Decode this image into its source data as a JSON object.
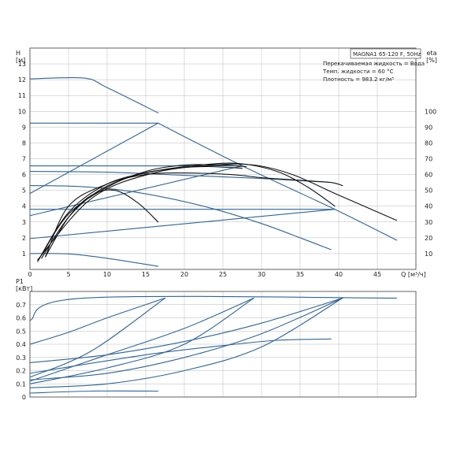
{
  "legend_box": {
    "model": "MAGNA1 65-120 F, 50Hz",
    "liquid": "Перекачиваемая жидкость = Вода",
    "temp": "Темп. жидкости = 60 °C",
    "density": "Плотность = 983.2 кг/м³"
  },
  "colors": {
    "blue": "#2f6496",
    "black": "#111111",
    "grid": "#b8b8b8"
  },
  "chart_data": [
    {
      "type": "line",
      "xlabel": "Q [м³/ч]",
      "ylabel": "H\n[м]",
      "y2label": "eta\n[%]",
      "xlim": [
        0,
        50
      ],
      "ylim": [
        0,
        14
      ],
      "y2lim": [
        0,
        140
      ],
      "x_ticks": [
        "0",
        "5",
        "10",
        "15",
        "20",
        "25",
        "30",
        "35",
        "40",
        "45"
      ],
      "y_ticks": [
        "1",
        "2",
        "3",
        "4",
        "5",
        "6",
        "7",
        "8",
        "9",
        "10",
        "11",
        "12",
        "13"
      ],
      "y2_ticks": [
        "10",
        "20",
        "30",
        "40",
        "50",
        "60",
        "70",
        "80",
        "90",
        "100"
      ],
      "grid": true,
      "series": [
        {
          "kind": "hq",
          "x": [
            0,
            7,
            10,
            16.6
          ],
          "y": [
            12.05,
            12.1,
            11.5,
            9.9
          ]
        },
        {
          "kind": "hq",
          "x": [
            16.6,
            27.5,
            39.5,
            47.5
          ],
          "y": [
            9.25,
            6.55,
            3.8,
            1.85
          ]
        },
        {
          "kind": "hq",
          "x": [
            0,
            16.6
          ],
          "y": [
            9.25,
            9.25
          ]
        },
        {
          "kind": "hq",
          "x": [
            0,
            27.5
          ],
          "y": [
            6.55,
            6.55
          ]
        },
        {
          "kind": "hq",
          "x": [
            0,
            39.5
          ],
          "y": [
            3.8,
            3.8
          ]
        },
        {
          "kind": "hq",
          "x": [
            0,
            16.6
          ],
          "y": [
            4.8,
            9.25
          ]
        },
        {
          "kind": "hq",
          "x": [
            0,
            27.5
          ],
          "y": [
            3.4,
            6.55
          ]
        },
        {
          "kind": "hq",
          "x": [
            0,
            39.5
          ],
          "y": [
            1.95,
            3.8
          ]
        },
        {
          "kind": "hq",
          "x": [
            0,
            10,
            20,
            30,
            39
          ],
          "y": [
            6.2,
            6.15,
            5.95,
            5.75,
            5.5
          ]
        },
        {
          "kind": "hq",
          "x": [
            0,
            6,
            12,
            18,
            24,
            30,
            35,
            39
          ],
          "y": [
            5.3,
            5.25,
            5.0,
            4.5,
            3.8,
            2.9,
            2.0,
            1.25
          ]
        },
        {
          "kind": "hq",
          "x": [
            0,
            5,
            10,
            16.6
          ],
          "y": [
            1.0,
            0.98,
            0.7,
            0.2
          ]
        },
        {
          "kind": "eta",
          "x": [
            1,
            8,
            16,
            24,
            29,
            34,
            40,
            47.5
          ],
          "y": [
            6,
            45,
            61,
            66,
            66,
            60,
            47,
            31
          ]
        },
        {
          "kind": "eta",
          "x": [
            1,
            5,
            10,
            16,
            22,
            27,
            32,
            36,
            39.5
          ],
          "y": [
            5,
            36,
            54,
            62,
            66,
            67,
            62,
            52,
            40
          ]
        },
        {
          "kind": "eta",
          "x": [
            1.5,
            5,
            9,
            14,
            19,
            23,
            27.5
          ],
          "y": [
            7,
            33,
            50,
            60,
            64,
            65,
            64
          ]
        },
        {
          "kind": "eta",
          "x": [
            2,
            5,
            8,
            11,
            14,
            16.6
          ],
          "y": [
            8,
            33,
            47,
            50,
            42,
            30
          ]
        },
        {
          "kind": "eta",
          "x": [
            1.5,
            5,
            10,
            15,
            20,
            25,
            28
          ],
          "y": [
            9,
            35,
            52,
            62,
            66,
            66,
            65
          ]
        },
        {
          "kind": "eta",
          "x": [
            2,
            5,
            10,
            15,
            20,
            26,
            30,
            33,
            36,
            39,
            40.5
          ],
          "y": [
            8,
            40,
            54,
            60,
            61,
            60,
            58,
            57,
            56,
            55,
            53
          ]
        }
      ]
    },
    {
      "type": "line",
      "xlabel": "",
      "ylabel": "P1\n[кВт]",
      "xlim": [
        0,
        50
      ],
      "ylim": [
        0,
        0.8
      ],
      "y_ticks": [
        "0",
        "0.1",
        "0.2",
        "0.3",
        "0.4",
        "0.5",
        "0.6",
        "0.7"
      ],
      "grid": true,
      "series": [
        {
          "x": [
            0,
            7,
            47.5
          ],
          "y": [
            0.58,
            0.75,
            0.75
          ]
        },
        {
          "x": [
            0,
            5,
            10,
            17.5
          ],
          "y": [
            0.4,
            0.49,
            0.6,
            0.75
          ]
        },
        {
          "x": [
            0,
            8,
            17.5
          ],
          "y": [
            0.15,
            0.35,
            0.75
          ]
        },
        {
          "x": [
            0,
            10,
            20,
            29
          ],
          "y": [
            0.12,
            0.32,
            0.52,
            0.75
          ]
        },
        {
          "x": [
            0,
            10,
            20,
            29
          ],
          "y": [
            0.1,
            0.22,
            0.4,
            0.75
          ]
        },
        {
          "x": [
            0,
            10,
            20,
            30,
            40.5
          ],
          "y": [
            0.26,
            0.32,
            0.42,
            0.56,
            0.75
          ]
        },
        {
          "x": [
            0,
            10,
            20,
            30,
            40.5
          ],
          "y": [
            0.13,
            0.18,
            0.3,
            0.48,
            0.75
          ]
        },
        {
          "x": [
            0,
            10,
            20,
            30,
            40.5
          ],
          "y": [
            0.07,
            0.1,
            0.2,
            0.38,
            0.75
          ]
        },
        {
          "x": [
            0,
            15,
            25,
            32,
            39
          ],
          "y": [
            0.18,
            0.32,
            0.39,
            0.43,
            0.44
          ]
        },
        {
          "x": [
            0,
            8,
            16.6
          ],
          "y": [
            0.03,
            0.045,
            0.045
          ]
        }
      ]
    }
  ]
}
